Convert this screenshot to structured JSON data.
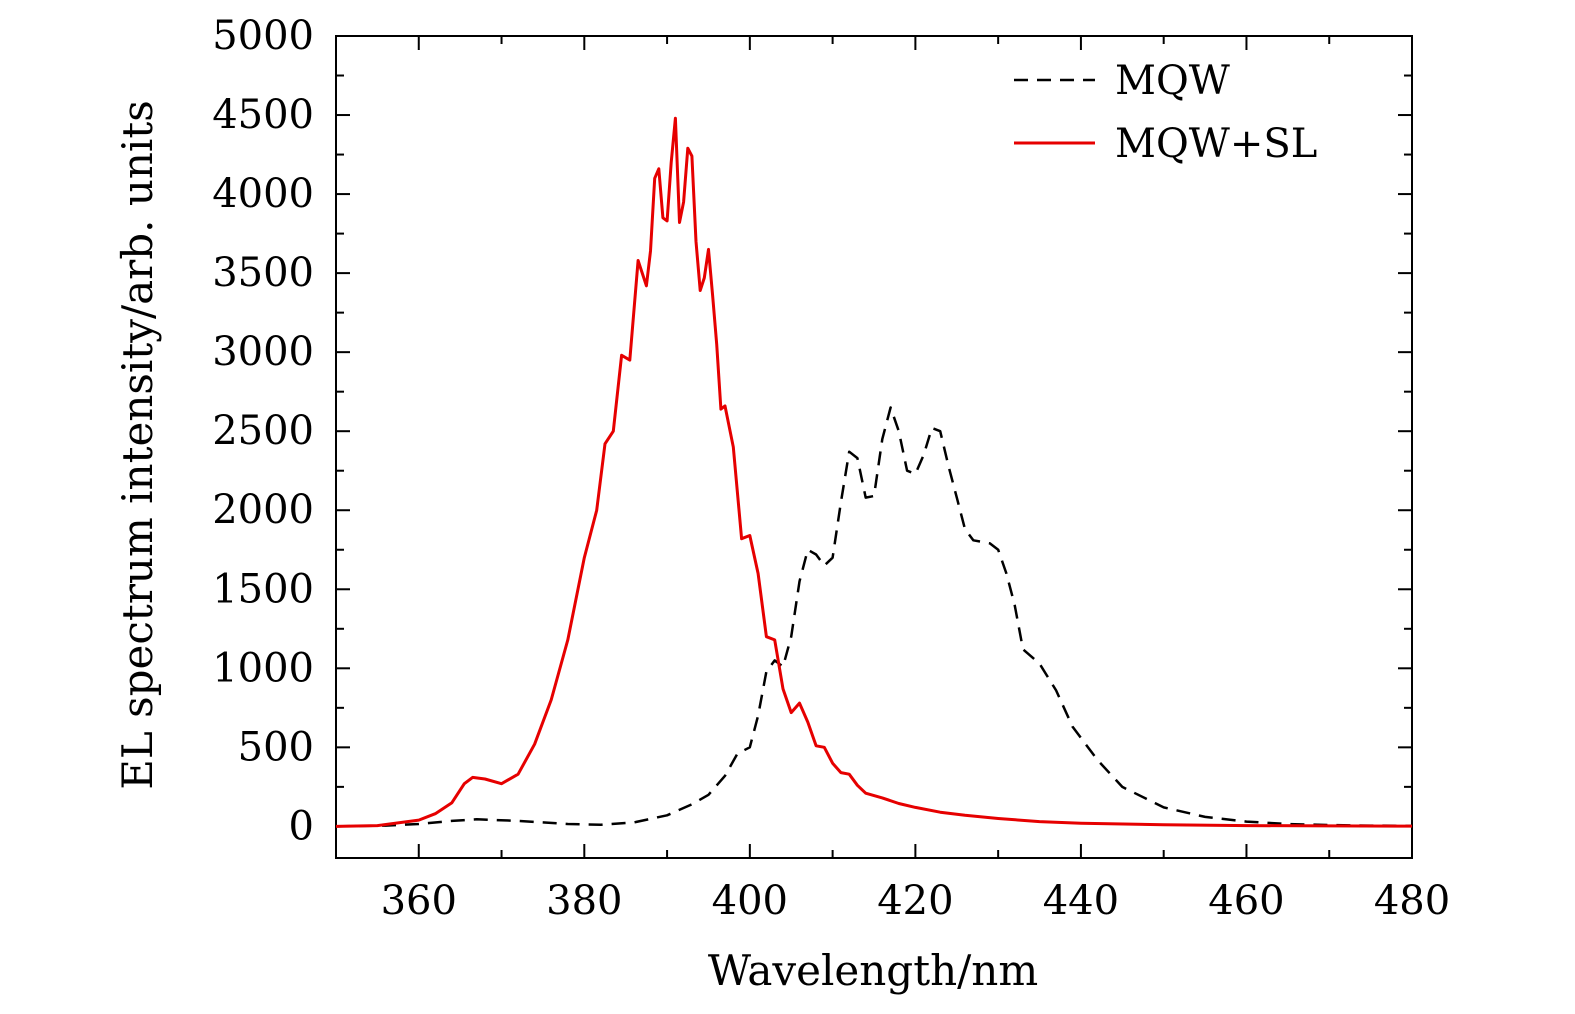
{
  "chart_data": {
    "type": "line",
    "title": "",
    "xlabel": "Wavelength/nm",
    "ylabel": "EL spectrum intensity/arb. units",
    "xlim": [
      350,
      480
    ],
    "ylim": [
      -200,
      5000
    ],
    "xticks": [
      360,
      380,
      400,
      420,
      440,
      460,
      480
    ],
    "yticks": [
      0,
      500,
      1000,
      1500,
      2000,
      2500,
      3000,
      3500,
      4000,
      4500,
      5000
    ],
    "xtick_labels": [
      "360",
      "380",
      "400",
      "420",
      "440",
      "460",
      "480"
    ],
    "ytick_labels": [
      "0",
      "500",
      "1000",
      "1500",
      "2000",
      "2500",
      "3000",
      "3500",
      "4000",
      "4500",
      "5000"
    ],
    "grid": false,
    "legend_position": "top-right",
    "series": [
      {
        "name": "MQW",
        "color": "#000000",
        "style": "dashed",
        "x": [
          350,
          356,
          360,
          364,
          367,
          372,
          378,
          382,
          386,
          390,
          393,
          395,
          397,
          398.5,
          400,
          401,
          402,
          403,
          404,
          405,
          406,
          407,
          408,
          409,
          410,
          411,
          412,
          413,
          414,
          415,
          416,
          417,
          418,
          419,
          420,
          421,
          422,
          423,
          424,
          425,
          426,
          427,
          428,
          429,
          430,
          431,
          432,
          433,
          435,
          437,
          439,
          442,
          445,
          450,
          455,
          460,
          465,
          470,
          475,
          480
        ],
        "values": [
          0,
          5,
          15,
          35,
          45,
          35,
          15,
          10,
          25,
          70,
          140,
          200,
          320,
          460,
          500,
          700,
          980,
          1050,
          1010,
          1200,
          1550,
          1750,
          1720,
          1650,
          1700,
          2050,
          2370,
          2330,
          2080,
          2090,
          2450,
          2650,
          2500,
          2250,
          2230,
          2350,
          2520,
          2500,
          2280,
          2080,
          1880,
          1810,
          1800,
          1790,
          1750,
          1600,
          1400,
          1120,
          1030,
          860,
          630,
          420,
          250,
          120,
          60,
          30,
          15,
          8,
          5,
          3
        ]
      },
      {
        "name": "MQW+SL",
        "color": "#e60000",
        "style": "solid",
        "x": [
          350,
          355,
          360,
          362,
          364,
          365.5,
          366.5,
          368,
          370,
          372,
          374,
          376,
          378,
          380,
          381.5,
          382.5,
          383.5,
          384.5,
          385.5,
          386.5,
          387.5,
          388,
          388.5,
          389,
          389.5,
          390,
          390.5,
          391,
          391.5,
          392,
          392.5,
          393,
          393.5,
          394,
          394.5,
          395,
          395.5,
          396,
          396.5,
          397,
          398,
          399,
          400,
          401,
          402,
          403,
          404,
          405,
          406,
          407,
          408,
          409,
          410,
          411,
          412,
          413,
          414,
          416,
          418,
          420,
          423,
          426,
          430,
          435,
          440,
          450,
          460,
          470,
          480
        ],
        "values": [
          0,
          5,
          40,
          80,
          150,
          270,
          310,
          300,
          270,
          330,
          520,
          800,
          1180,
          1700,
          2000,
          2420,
          2500,
          2980,
          2950,
          3580,
          3420,
          3640,
          4100,
          4160,
          3850,
          3830,
          4200,
          4480,
          3820,
          3950,
          4290,
          4240,
          3700,
          3390,
          3470,
          3650,
          3360,
          3050,
          2640,
          2660,
          2400,
          1820,
          1840,
          1600,
          1200,
          1180,
          870,
          720,
          780,
          660,
          510,
          500,
          400,
          340,
          330,
          260,
          210,
          180,
          145,
          120,
          90,
          70,
          50,
          30,
          20,
          10,
          5,
          3,
          2
        ]
      }
    ]
  }
}
